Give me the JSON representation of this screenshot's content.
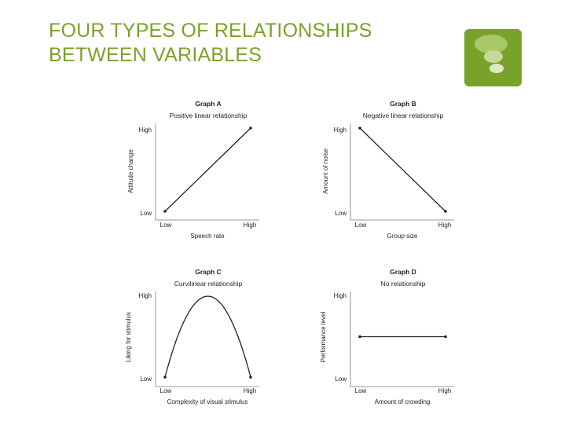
{
  "slide": {
    "title_line1": "FOUR TYPES OF RELATIONSHIPS",
    "title_line2": "BETWEEN VARIABLES"
  },
  "colors": {
    "title": "#7aa22b",
    "logo": "#7aa22b",
    "ink": "#222222"
  },
  "logo": {
    "icon": "speech-bubbles-icon"
  },
  "chart_data": [
    {
      "type": "line",
      "title": "Graph A",
      "subtitle": "Positive linear relationship",
      "xlabel": "Speech rate",
      "ylabel": "Attitude change",
      "x_ticks": [
        "Low",
        "High"
      ],
      "y_ticks": [
        "Low",
        "High"
      ],
      "xlim": [
        0,
        1
      ],
      "ylim": [
        0,
        1
      ],
      "x": [
        0,
        1
      ],
      "y": [
        0,
        1
      ]
    },
    {
      "type": "line",
      "title": "Graph B",
      "subtitle": "Negative linear relationship",
      "xlabel": "Group size",
      "ylabel": "Amount of noise",
      "x_ticks": [
        "Low",
        "High"
      ],
      "y_ticks": [
        "Low",
        "High"
      ],
      "xlim": [
        0,
        1
      ],
      "ylim": [
        0,
        1
      ],
      "x": [
        0,
        1
      ],
      "y": [
        1,
        0
      ]
    },
    {
      "type": "line",
      "title": "Graph C",
      "subtitle": "Curvilinear relationship",
      "xlabel": "Complexity of visual stimulus",
      "ylabel": "Liking for stimulus",
      "x_ticks": [
        "Low",
        "High"
      ],
      "y_ticks": [
        "Low",
        "High"
      ],
      "xlim": [
        0,
        1
      ],
      "ylim": [
        0,
        1
      ],
      "x": [
        0,
        0.1,
        0.2,
        0.3,
        0.4,
        0.5,
        0.6,
        0.7,
        0.8,
        0.9,
        1
      ],
      "y": [
        0,
        0.36,
        0.64,
        0.84,
        0.96,
        1,
        0.96,
        0.84,
        0.64,
        0.36,
        0
      ]
    },
    {
      "type": "line",
      "title": "Graph D",
      "subtitle": "No relationship",
      "xlabel": "Amount of crowding",
      "ylabel": "Performance level",
      "x_ticks": [
        "Low",
        "High"
      ],
      "y_ticks": [
        "Low",
        "High"
      ],
      "xlim": [
        0,
        1
      ],
      "ylim": [
        0,
        1
      ],
      "x": [
        0,
        1
      ],
      "y": [
        0.5,
        0.5
      ]
    }
  ]
}
